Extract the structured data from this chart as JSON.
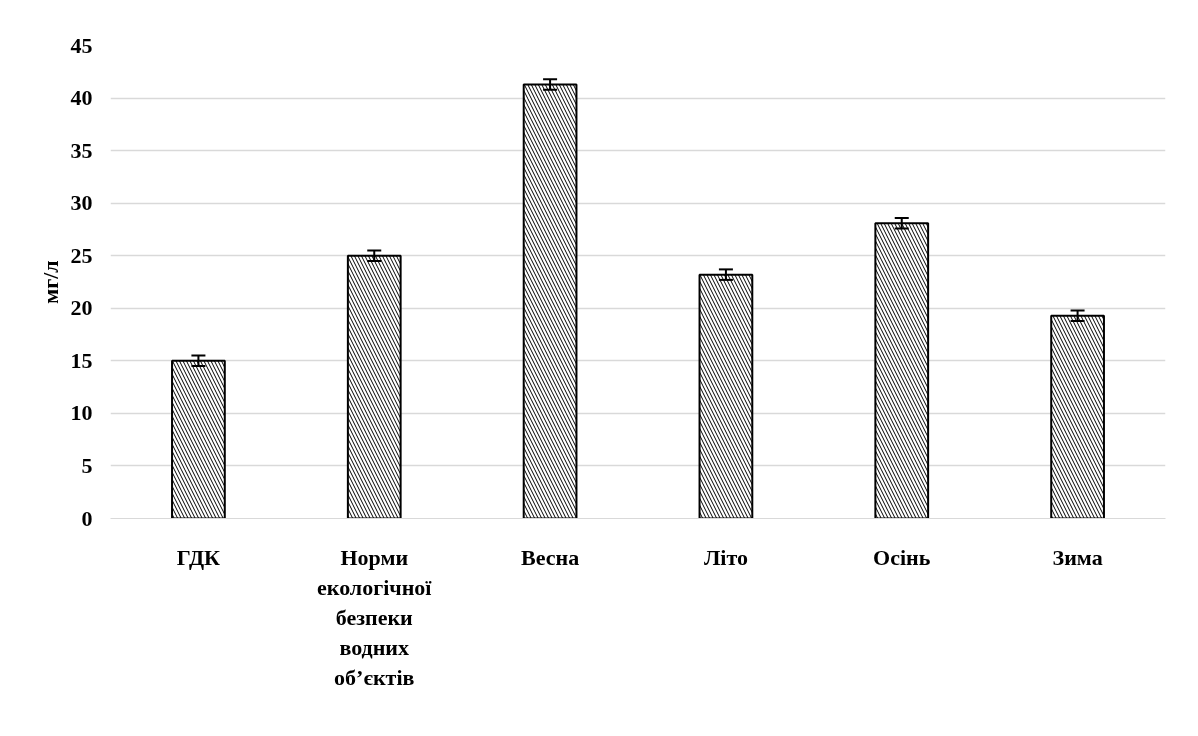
{
  "chart_data": {
    "type": "bar",
    "ylabel": "мг/л",
    "categories": [
      "ГДК",
      "Норми екологічної безпеки водних об’єктів",
      "Весна",
      "Літо",
      "Осінь",
      "Зима"
    ],
    "values": [
      15.0,
      25.0,
      41.3,
      23.2,
      28.1,
      19.3
    ],
    "errors": [
      0.5,
      0.5,
      0.5,
      0.5,
      0.5,
      0.5
    ],
    "ylim": [
      0,
      45
    ],
    "yticks": [
      0,
      5,
      10,
      15,
      20,
      25,
      30,
      35,
      40,
      45
    ],
    "grid": "y"
  }
}
